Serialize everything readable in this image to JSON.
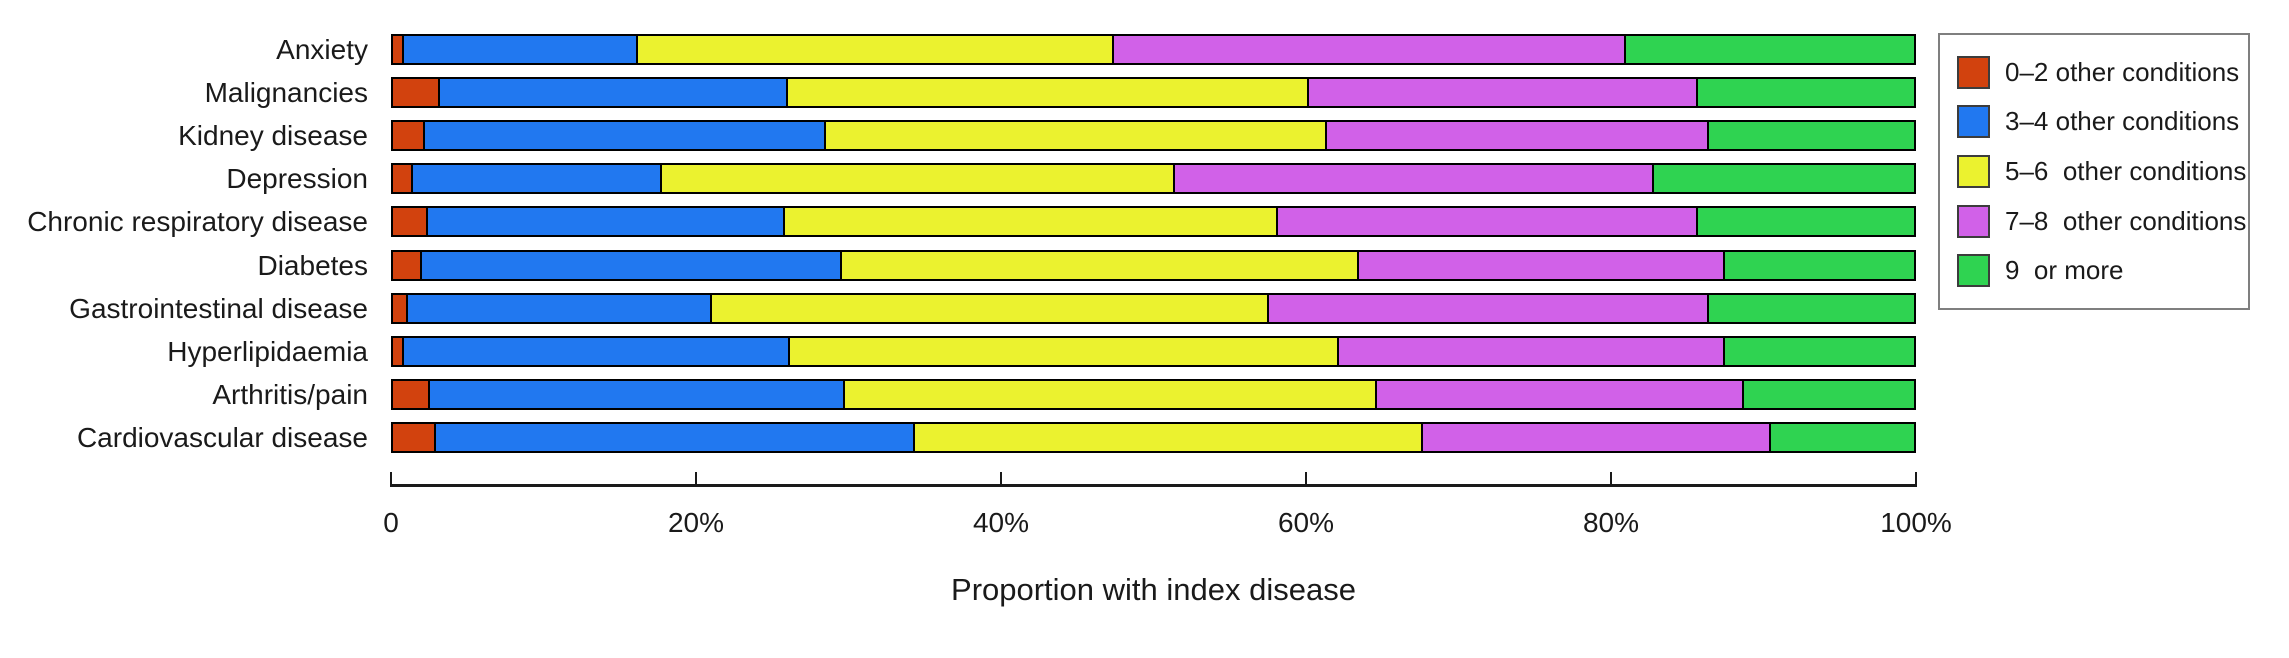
{
  "chart_data": {
    "type": "bar",
    "orientation": "horizontal",
    "stacked": true,
    "title": "",
    "xlabel": "Proportion with index disease",
    "ylabel": "",
    "xlim": [
      0,
      100
    ],
    "grid": false,
    "legend_position": "top-right",
    "x_ticks": [
      {
        "value": 0,
        "label": "0"
      },
      {
        "value": 20,
        "label": "20%"
      },
      {
        "value": 40,
        "label": "40%"
      },
      {
        "value": 60,
        "label": "60%"
      },
      {
        "value": 80,
        "label": "80%"
      },
      {
        "value": 100,
        "label": "100%"
      }
    ],
    "categories": [
      "Anxiety",
      "Malignancies",
      "Kidney disease",
      "Depression",
      "Chronic respiratory disease",
      "Diabetes",
      "Gastrointestinal disease",
      "Hyperlipidaemia",
      "Arthritis/pain",
      "Cardiovascular disease"
    ],
    "series": [
      {
        "name": "0–2 other conditions",
        "color": "#d2420e",
        "values": [
          0.7,
          3.1,
          2.1,
          1.3,
          2.3,
          1.9,
          1.0,
          0.7,
          2.4,
          2.8
        ]
      },
      {
        "name": "3–4 other conditions",
        "color": "#2178f0",
        "values": [
          15.4,
          22.9,
          26.4,
          16.4,
          23.5,
          27.6,
          20.0,
          25.4,
          27.3,
          31.5
        ]
      },
      {
        "name": "5–6  other conditions",
        "color": "#ebf22f",
        "values": [
          31.3,
          34.2,
          32.9,
          33.7,
          32.4,
          34.0,
          36.6,
          36.1,
          35.0,
          33.4
        ]
      },
      {
        "name": "7–8  other conditions",
        "color": "#d161e8",
        "values": [
          33.7,
          25.6,
          25.1,
          31.5,
          27.6,
          24.1,
          28.9,
          25.4,
          24.1,
          22.9
        ]
      },
      {
        "name": "9  or more",
        "color": "#2fd351",
        "values": [
          18.9,
          14.2,
          13.5,
          17.1,
          14.2,
          12.4,
          13.5,
          12.4,
          11.2,
          9.4
        ]
      }
    ]
  },
  "styles": {
    "background": "#ffffff",
    "axis_color": "#1a1a1a",
    "text_color": "#1a1a1a",
    "bar_border_color": "#000000",
    "legend_border_color": "#7f7f7f"
  }
}
